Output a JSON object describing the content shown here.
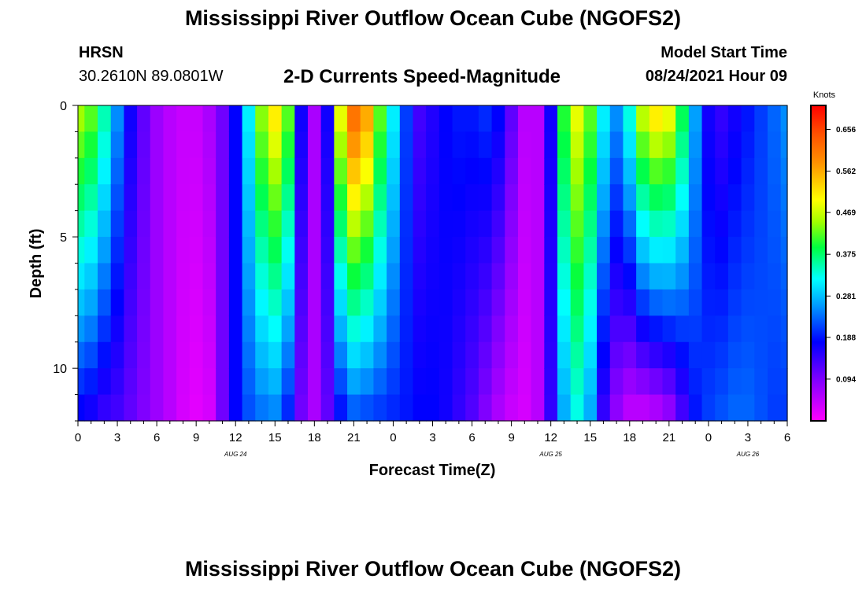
{
  "header": {
    "title": "Mississippi River Outflow Ocean Cube (NGOFS2)",
    "station": "HRSN",
    "coordinates": "30.2610N  89.0801W",
    "subtitle": "2-D Currents Speed-Magnitude",
    "model_start_label": "Model Start Time",
    "model_start_value": "08/24/2021 Hour 09"
  },
  "footer": {
    "title": "Mississippi River Outflow Ocean Cube (NGOFS2)"
  },
  "chart_data": {
    "type": "heatmap",
    "xlabel": "Forecast Time(Z)",
    "ylabel": "Depth (ft)",
    "x_tick_labels": [
      "0",
      "3",
      "6",
      "9",
      "12",
      "15",
      "18",
      "21",
      "0",
      "3",
      "6",
      "9",
      "12",
      "15",
      "18",
      "21",
      "0",
      "3",
      "6"
    ],
    "x_range_hours": [
      0,
      54
    ],
    "date_labels": [
      {
        "label": "AUG  24",
        "hour": 12
      },
      {
        "label": "AUG  25",
        "hour": 36
      },
      {
        "label": "AUG  26",
        "hour": 51
      }
    ],
    "y_ticks": [
      0,
      5,
      10
    ],
    "y_range": [
      0,
      12
    ],
    "y_reversed": true,
    "colorbar": {
      "unit": "Knots",
      "min": 0.0,
      "max": 0.71,
      "tick_labels": [
        "0.656",
        "0.562",
        "0.469",
        "0.375",
        "0.281",
        "0.188",
        "0.094"
      ]
    },
    "depth_levels_ft": [
      0.5,
      1.5,
      2.5,
      3.5,
      4.5,
      5.5,
      6.5,
      7.5,
      8.5,
      9.5,
      10.5,
      11.5
    ],
    "speed_time_profile": [
      {
        "hour": 0,
        "surface": 0.45,
        "bottom": 0.17
      },
      {
        "hour": 1,
        "surface": 0.42,
        "bottom": 0.16
      },
      {
        "hour": 2,
        "surface": 0.34,
        "bottom": 0.14
      },
      {
        "hour": 3,
        "surface": 0.24,
        "bottom": 0.13
      },
      {
        "hour": 4,
        "surface": 0.16,
        "bottom": 0.11
      },
      {
        "hour": 5,
        "surface": 0.11,
        "bottom": 0.09
      },
      {
        "hour": 6,
        "surface": 0.07,
        "bottom": 0.07
      },
      {
        "hour": 7,
        "surface": 0.05,
        "bottom": 0.05
      },
      {
        "hour": 8,
        "surface": 0.04,
        "bottom": 0.03
      },
      {
        "hour": 9,
        "surface": 0.04,
        "bottom": 0.02
      },
      {
        "hour": 10,
        "surface": 0.06,
        "bottom": 0.03
      },
      {
        "hour": 11,
        "surface": 0.1,
        "bottom": 0.1
      },
      {
        "hour": 12,
        "surface": 0.17,
        "bottom": 0.17
      },
      {
        "hour": 13,
        "surface": 0.3,
        "bottom": 0.21
      },
      {
        "hour": 14,
        "surface": 0.44,
        "bottom": 0.23
      },
      {
        "hour": 15,
        "surface": 0.5,
        "bottom": 0.24
      },
      {
        "hour": 16,
        "surface": 0.42,
        "bottom": 0.19
      },
      {
        "hour": 17,
        "surface": 0.16,
        "bottom": 0.1
      },
      {
        "hour": 18,
        "surface": 0.06,
        "bottom": 0.06
      },
      {
        "hour": 19,
        "surface": 0.16,
        "bottom": 0.11
      },
      {
        "hour": 20,
        "surface": 0.48,
        "bottom": 0.18
      },
      {
        "hour": 21,
        "surface": 0.6,
        "bottom": 0.22
      },
      {
        "hour": 22,
        "surface": 0.55,
        "bottom": 0.21
      },
      {
        "hour": 23,
        "surface": 0.42,
        "bottom": 0.2
      },
      {
        "hour": 24,
        "surface": 0.3,
        "bottom": 0.19
      },
      {
        "hour": 25,
        "surface": 0.2,
        "bottom": 0.18
      },
      {
        "hour": 26,
        "surface": 0.13,
        "bottom": 0.17
      },
      {
        "hour": 27,
        "surface": 0.15,
        "bottom": 0.17
      },
      {
        "hour": 28,
        "surface": 0.17,
        "bottom": 0.16
      },
      {
        "hour": 29,
        "surface": 0.18,
        "bottom": 0.14
      },
      {
        "hour": 30,
        "surface": 0.18,
        "bottom": 0.12
      },
      {
        "hour": 31,
        "surface": 0.19,
        "bottom": 0.09
      },
      {
        "hour": 32,
        "surface": 0.17,
        "bottom": 0.06
      },
      {
        "hour": 33,
        "surface": 0.11,
        "bottom": 0.04
      },
      {
        "hour": 34,
        "surface": 0.05,
        "bottom": 0.03
      },
      {
        "hour": 35,
        "surface": 0.05,
        "bottom": 0.05
      },
      {
        "hour": 36,
        "surface": 0.16,
        "bottom": 0.14
      },
      {
        "hour": 37,
        "surface": 0.4,
        "bottom": 0.26
      },
      {
        "hour": 38,
        "surface": 0.48,
        "bottom": 0.32
      },
      {
        "hour": 39,
        "surface": 0.42,
        "bottom": 0.26
      },
      {
        "hour": 40,
        "surface": 0.3,
        "bottom": 0.14
      },
      {
        "hour": 41,
        "surface": 0.24,
        "bottom": 0.08
      },
      {
        "hour": 42,
        "surface": 0.32,
        "bottom": 0.05
      },
      {
        "hour": 43,
        "surface": 0.46,
        "bottom": 0.05
      },
      {
        "hour": 44,
        "surface": 0.5,
        "bottom": 0.06
      },
      {
        "hour": 45,
        "surface": 0.48,
        "bottom": 0.08
      },
      {
        "hour": 46,
        "surface": 0.38,
        "bottom": 0.13
      },
      {
        "hour": 47,
        "surface": 0.25,
        "bottom": 0.18
      },
      {
        "hour": 48,
        "surface": 0.16,
        "bottom": 0.2
      },
      {
        "hour": 49,
        "surface": 0.14,
        "bottom": 0.21
      },
      {
        "hour": 50,
        "surface": 0.16,
        "bottom": 0.22
      },
      {
        "hour": 51,
        "surface": 0.18,
        "bottom": 0.22
      },
      {
        "hour": 52,
        "surface": 0.2,
        "bottom": 0.21
      },
      {
        "hour": 53,
        "surface": 0.22,
        "bottom": 0.2
      },
      {
        "hour": 54,
        "surface": 0.24,
        "bottom": 0.2
      }
    ],
    "grid": false
  }
}
